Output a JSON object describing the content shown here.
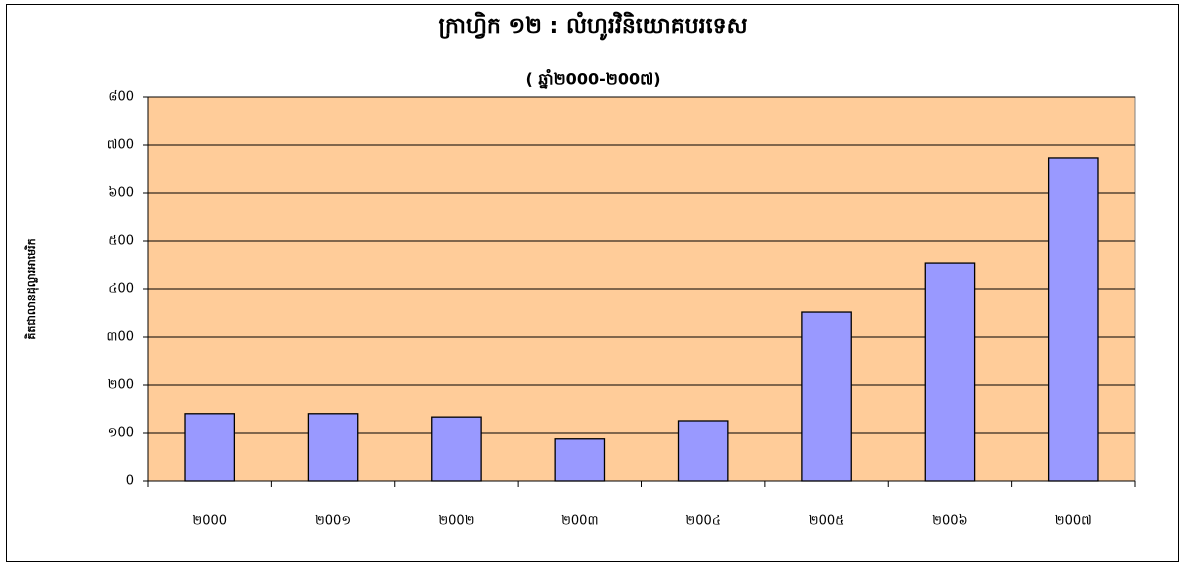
{
  "chart_data": {
    "type": "bar",
    "title": "ក្រាហ្វិក ១២ : លំហូរវិនិយោគបរទេស",
    "subtitle": "( ឆ្នាំ២000-២00៧)",
    "y_label": "គិតជាលានដុល្លារអាមេរិក",
    "categories": [
      "២000",
      "២00១",
      "២00២",
      "២00៣",
      "២00៤",
      "២00៥",
      "២00៦",
      "២00៧"
    ],
    "values": [
      140,
      140,
      133,
      88,
      125,
      352,
      454,
      673
    ],
    "color": "#9999ff",
    "ylim": [
      0,
      800
    ],
    "yticks": [
      0,
      {
        "value": 100,
        "label": "១00"
      },
      {
        "value": 200,
        "label": "២00"
      },
      {
        "value": 300,
        "label": "៣00"
      },
      {
        "value": 400,
        "label": "៤00"
      },
      {
        "value": 500,
        "label": "៥00"
      },
      {
        "value": 600,
        "label": "៦00"
      },
      {
        "value": 700,
        "label": "៧00"
      },
      {
        "value": 800,
        "label": "៨00"
      }
    ],
    "grid": true
  }
}
